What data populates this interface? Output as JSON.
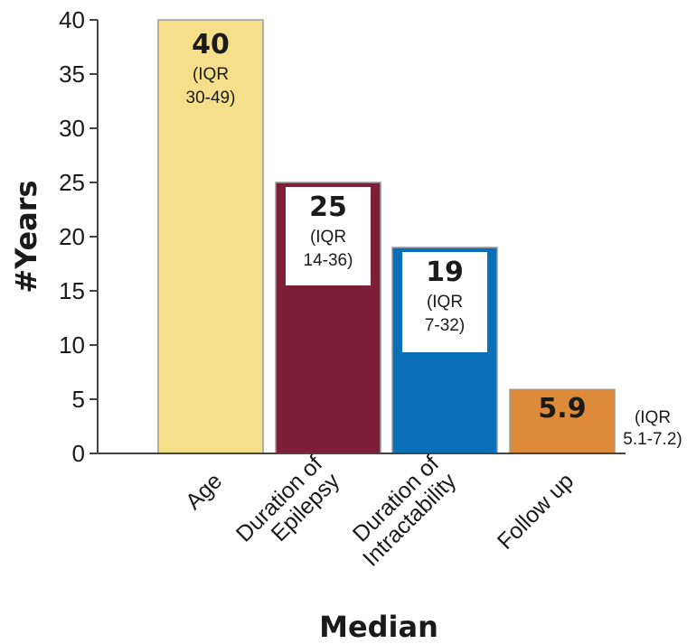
{
  "chart_data": {
    "type": "bar",
    "categories": [
      [
        "Age"
      ],
      [
        "Duration of",
        "Epilepsy"
      ],
      [
        "Duration of",
        "Intractability"
      ],
      [
        "Follow up"
      ]
    ],
    "values": [
      40,
      25,
      19,
      5.9
    ],
    "value_labels": [
      "40",
      "25",
      "19",
      "5.9"
    ],
    "iqr_labels": [
      [
        "(IQR",
        "30-49)"
      ],
      [
        "(IQR",
        "14-36)"
      ],
      [
        "(IQR",
        "7-32)"
      ],
      [
        "(IQR",
        "5.1-7.2)"
      ]
    ],
    "colors": [
      "#f5df8a",
      "#7e1f3a",
      "#0b6fb8",
      "#dd8a3a"
    ],
    "ylabel": "#Years",
    "xlabel": "Median",
    "ylim": [
      0,
      40
    ],
    "yticks": [
      0,
      5,
      10,
      15,
      20,
      25,
      30,
      35,
      40
    ],
    "grid": false,
    "legend": "none"
  }
}
